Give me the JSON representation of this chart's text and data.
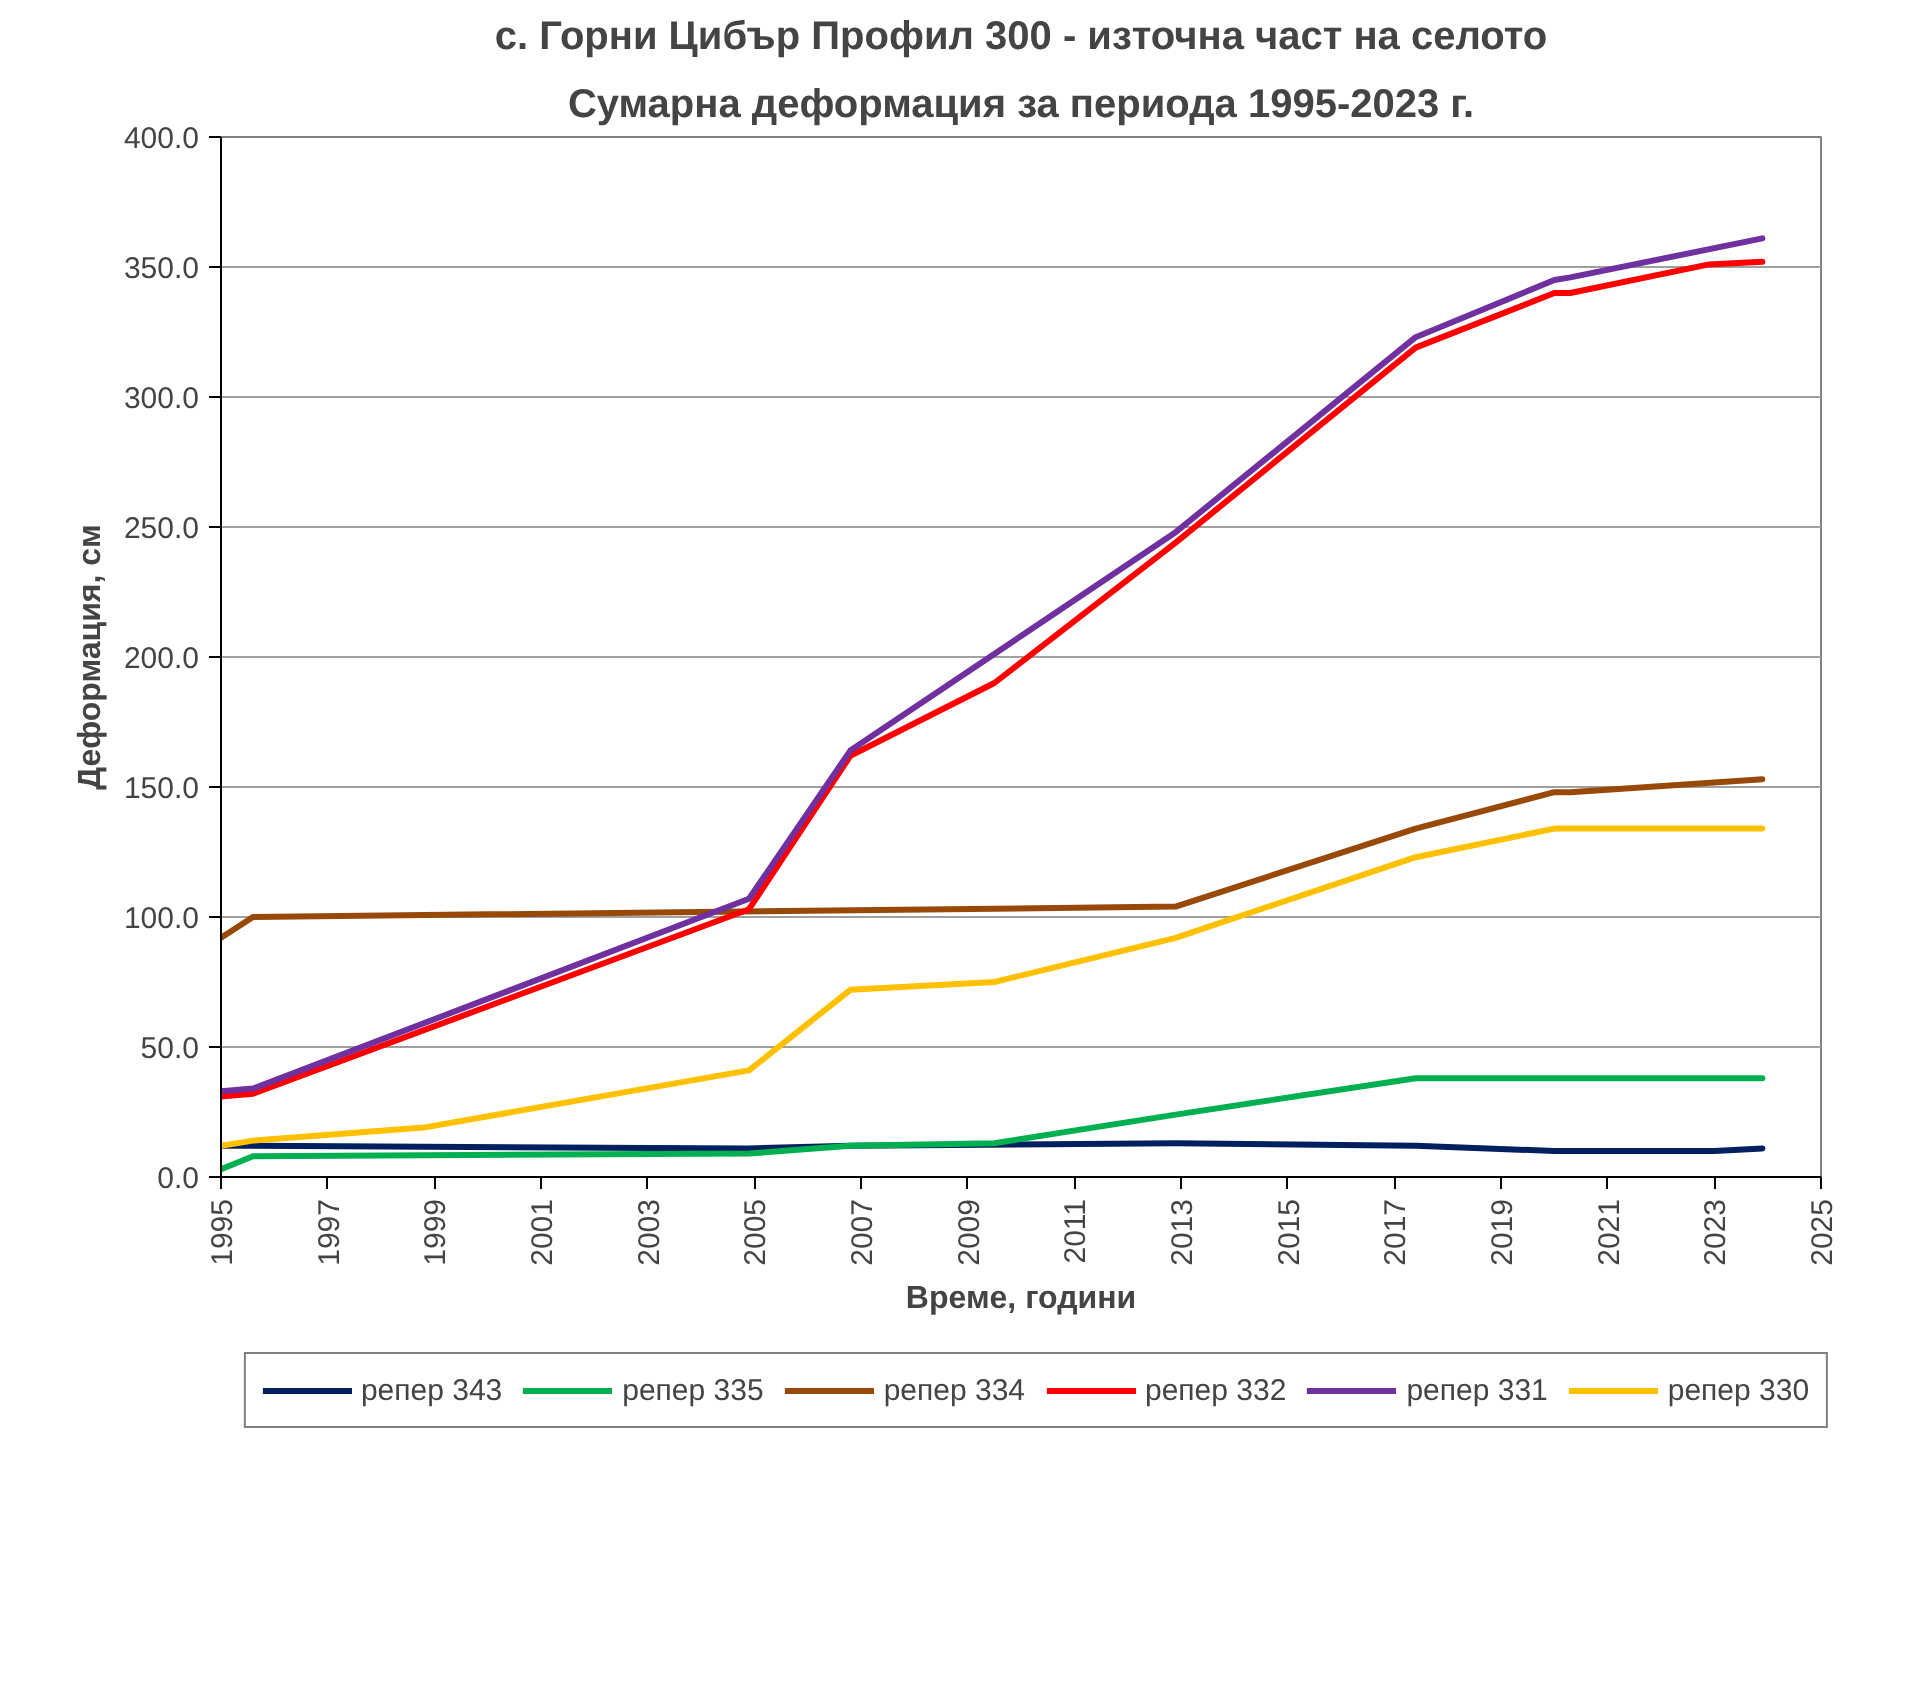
{
  "chart_data": {
    "type": "line",
    "title": "с. Горни Цибър Профил 300 - източна част на селото",
    "subtitle": "Сумарна деформация за периода 1995-2023 г.",
    "xlabel": "Време, години",
    "ylabel": "Деформация, см",
    "xlim": [
      1995,
      2025
    ],
    "xticks": [
      1995,
      1997,
      1999,
      2001,
      2003,
      2005,
      2007,
      2009,
      2011,
      2013,
      2015,
      2017,
      2019,
      2021,
      2023,
      2025
    ],
    "ylim": [
      0,
      400
    ],
    "yticks": [
      {
        "value": 0,
        "label": "0.0"
      },
      {
        "value": 50,
        "label": "50.0"
      },
      {
        "value": 100,
        "label": "100.0"
      },
      {
        "value": 150,
        "label": "150.0"
      },
      {
        "value": 200,
        "label": "200.0"
      },
      {
        "value": 250,
        "label": "250.0"
      },
      {
        "value": 300,
        "label": "300.0"
      },
      {
        "value": 350,
        "label": "350.0"
      },
      {
        "value": 400,
        "label": "400.0"
      }
    ],
    "grid": "y",
    "legend": "bottom",
    "marker": "none",
    "line_style": "solid",
    "series": [
      {
        "name": "репер 343",
        "color": "#002060",
        "x": [
          1995,
          1995.6,
          2004.9,
          2006.8,
          2012.9,
          2017.4,
          2020,
          2023,
          2023.9
        ],
        "values": [
          12,
          12,
          11,
          12,
          13,
          12,
          10,
          10,
          11
        ]
      },
      {
        "name": "репер 335",
        "color": "#00b050",
        "x": [
          1995,
          1995.6,
          2004.9,
          2006.8,
          2009.5,
          2012.9,
          2017.4,
          2020,
          2023.9
        ],
        "values": [
          3,
          8,
          9,
          12,
          13,
          24,
          38,
          38,
          38
        ]
      },
      {
        "name": "репер 334",
        "color": "#984807",
        "x": [
          1995,
          1995.6,
          2012.9,
          2017.4,
          2020,
          2020.3,
          2023.9
        ],
        "values": [
          92,
          100,
          104,
          134,
          148,
          148,
          153
        ]
      },
      {
        "name": "репер 332",
        "color": "#ff0000",
        "x": [
          1995,
          1995.6,
          2004.9,
          2006.8,
          2009.5,
          2012.9,
          2017.4,
          2020,
          2020.3,
          2022.9,
          2023.9
        ],
        "values": [
          31,
          32,
          103,
          162,
          190,
          244,
          319,
          340,
          340,
          351,
          352
        ]
      },
      {
        "name": "репер 331",
        "color": "#7030a0",
        "x": [
          1995,
          1995.6,
          2004.9,
          2006.8,
          2012.9,
          2017.4,
          2020,
          2020.3,
          2023.9
        ],
        "values": [
          33,
          34,
          107,
          164,
          248,
          323,
          345,
          346,
          361
        ]
      },
      {
        "name": "репер 330",
        "color": "#ffc000",
        "x": [
          1995,
          1995.6,
          1998.8,
          2004.9,
          2006.8,
          2009.5,
          2012.9,
          2017.4,
          2020,
          2023.9
        ],
        "values": [
          12,
          14,
          19,
          41,
          72,
          75,
          92,
          123,
          134,
          134
        ]
      }
    ]
  }
}
